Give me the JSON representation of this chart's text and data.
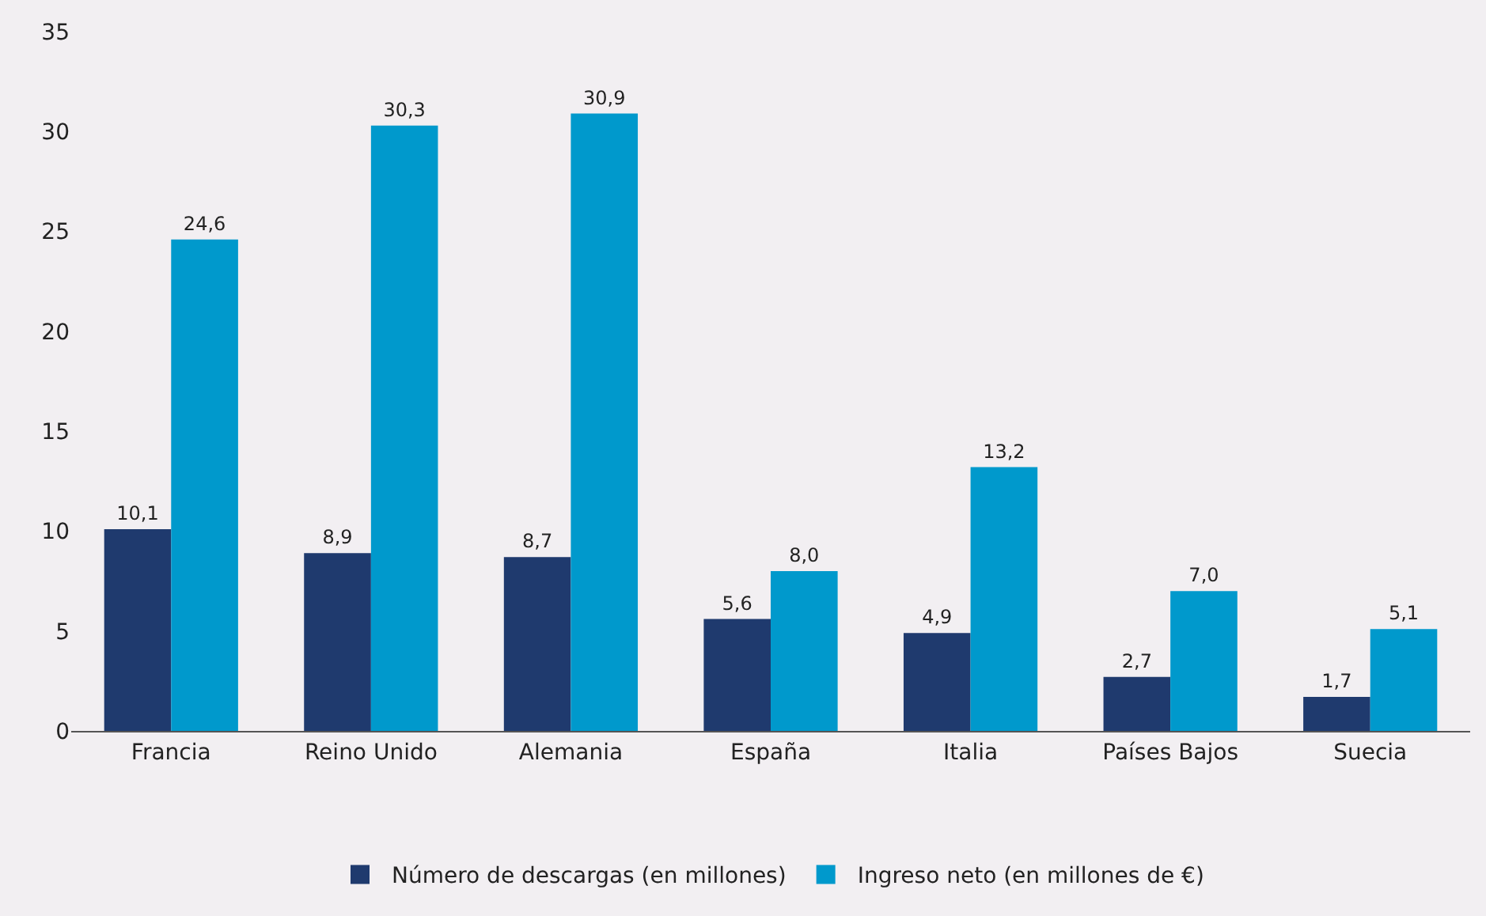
{
  "chart_data": {
    "type": "bar",
    "categories": [
      "Francia",
      "Reino Unido",
      "Alemania",
      "España",
      "Italia",
      "Países Bajos",
      "Suecia"
    ],
    "series": [
      {
        "name": "Número de descargas (en millones)",
        "color": "#1f3a6e",
        "values": [
          10.1,
          8.9,
          8.7,
          5.6,
          4.9,
          2.7,
          1.7
        ],
        "value_labels": [
          "10,1",
          "8,9",
          "8,7",
          "5,6",
          "4,9",
          "2,7",
          "1,7"
        ]
      },
      {
        "name": "Ingreso neto (en millones de €)",
        "color": "#0099cc",
        "values": [
          24.6,
          30.3,
          30.9,
          8.0,
          13.2,
          7.0,
          5.1
        ],
        "value_labels": [
          "24,6",
          "30,3",
          "30,9",
          "8,0",
          "13,2",
          "7,0",
          "5,1"
        ]
      }
    ],
    "ylim": [
      0,
      35
    ],
    "yticks": [
      0,
      5,
      10,
      15,
      20,
      25,
      30,
      35
    ],
    "grid": false,
    "legend": "bottom"
  }
}
